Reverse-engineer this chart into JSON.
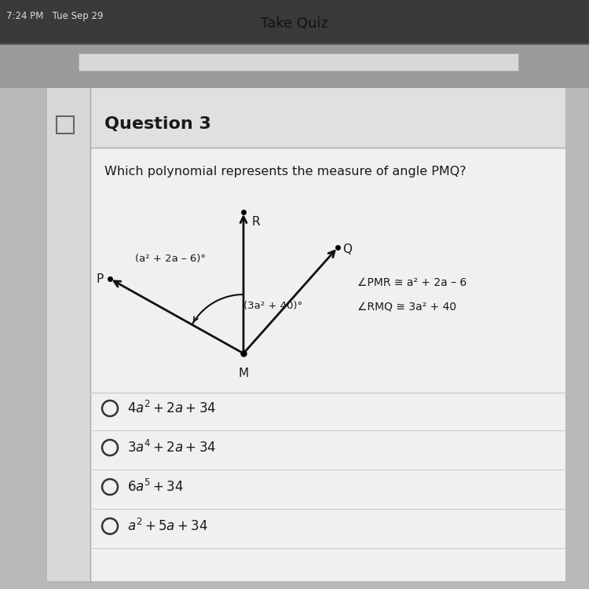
{
  "bg_color": "#b8b8b8",
  "top_bar_color": "#888888",
  "content_bg": "#e8e8e8",
  "white_panel": "#efefef",
  "status_bar_text": "7:24 PM   Tue Sep 29",
  "top_bar_title": "Take Quiz",
  "question_number": "Question 3",
  "question_text": "Which polynomial represents the measure of angle PMQ?",
  "angle_label_PMR": "(a² + 2a – 6)°",
  "angle_label_RMQ": "(3a² + 40)°",
  "info_line1": "∠PMR ≅ a² + 2a – 6",
  "info_line2": "∠RMQ ≅ 3a² + 40",
  "text_color": "#1a1a1a",
  "line_color": "#111111"
}
